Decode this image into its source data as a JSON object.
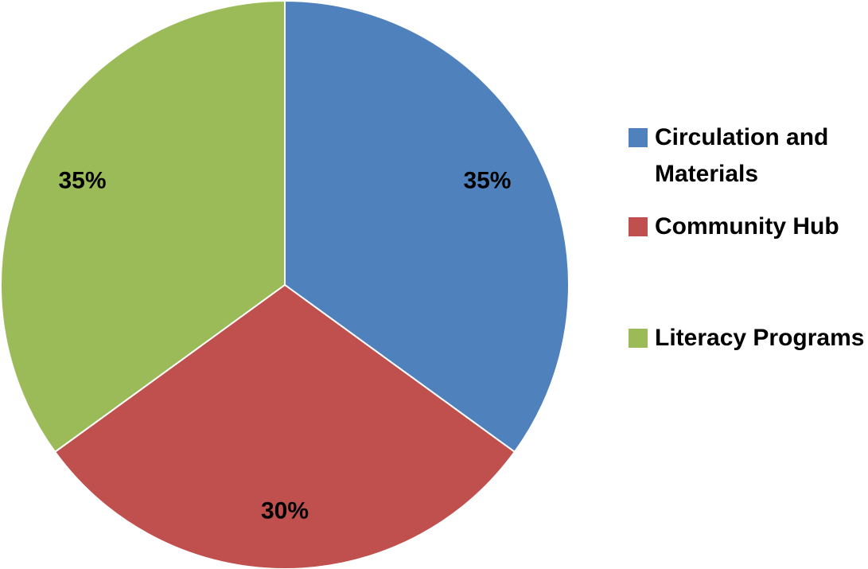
{
  "chart_data": {
    "type": "pie",
    "categories": [
      "Circulation and Materials",
      "Community Hub",
      "Literacy Programs"
    ],
    "values": [
      35,
      30,
      35
    ],
    "value_labels": [
      "35%",
      "30%",
      "35%"
    ],
    "colors": [
      "#4f81bd",
      "#c0504d",
      "#9bbb59"
    ],
    "legend": "right"
  }
}
